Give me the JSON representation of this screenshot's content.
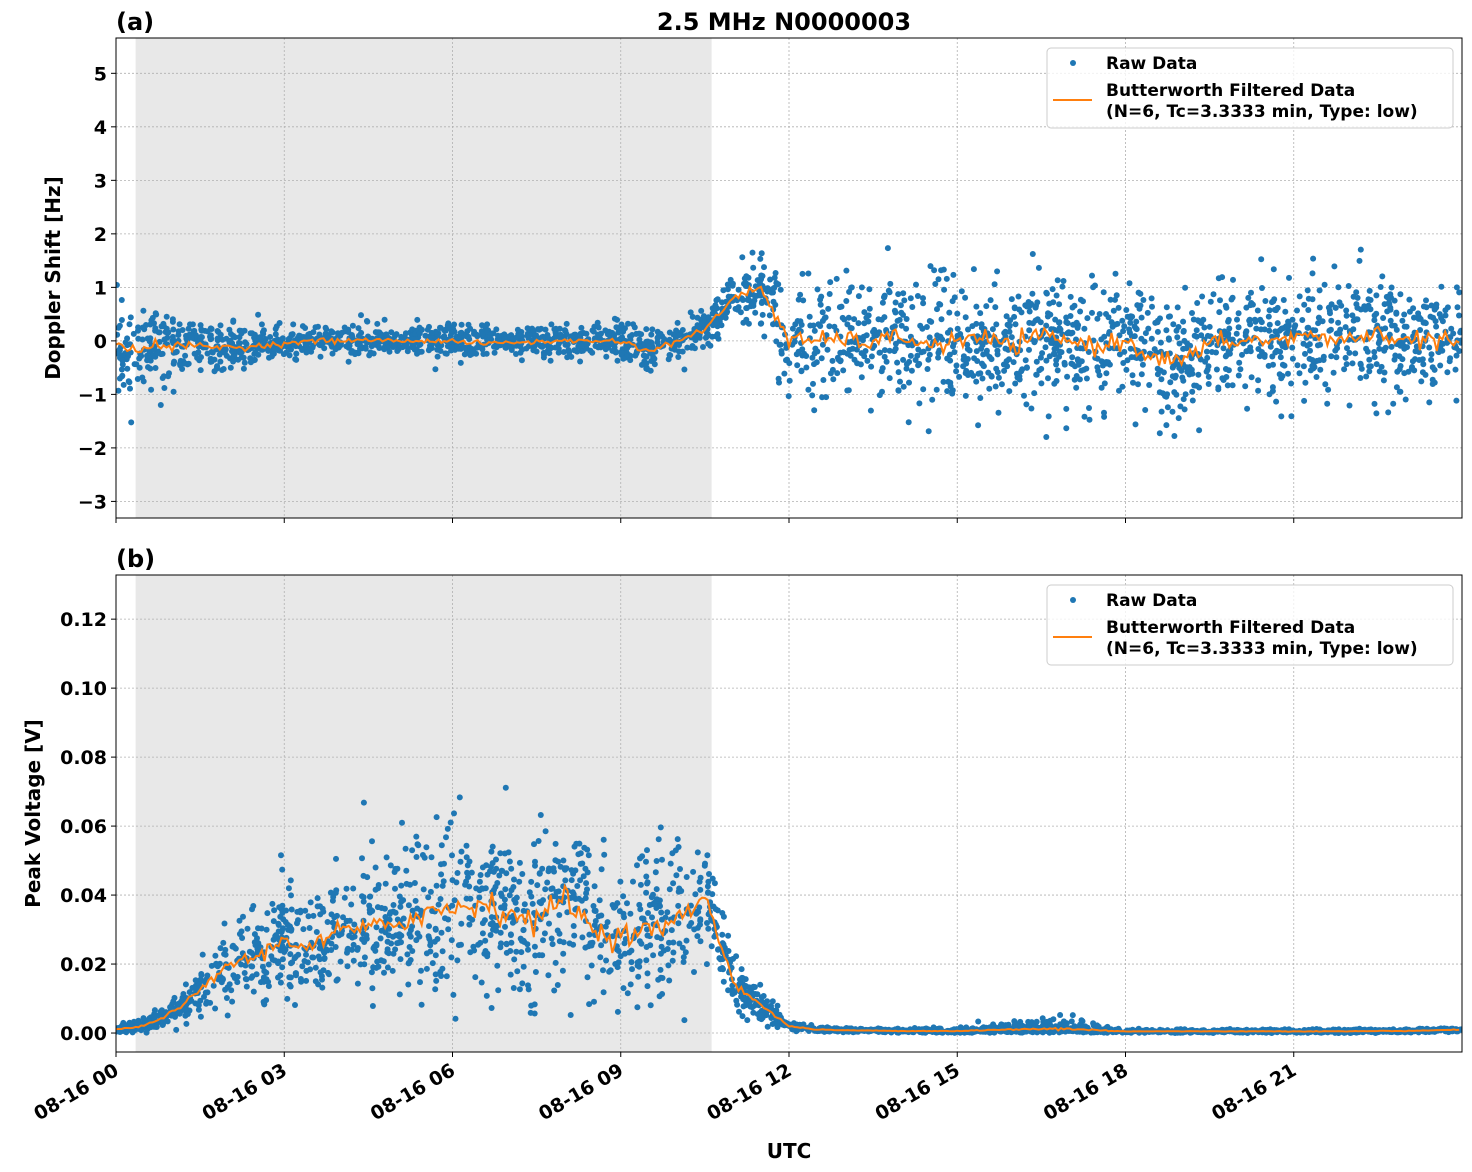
{
  "title": "2.5 MHz N0000003",
  "colors": {
    "raw": "#1f77b4",
    "filtered": "#ff7f0e",
    "shade": "#e8e8e8"
  },
  "chart_data": [
    {
      "type": "scatter",
      "panel_label": "(a)",
      "ylabel": "Doppler Shift [Hz]",
      "xlabel": "",
      "xlim_hours": [
        0,
        24
      ],
      "ylim": [
        -3.31,
        5.66
      ],
      "yticks": [
        "−3",
        "−2",
        "−1",
        "0",
        "1",
        "2",
        "3",
        "4",
        "5"
      ],
      "ytick_values": [
        -3,
        -2,
        -1,
        0,
        1,
        2,
        3,
        4,
        5
      ],
      "grid": true,
      "legend": {
        "placement": "top-right",
        "raw": "Raw Data",
        "filtered_line1": "Butterworth Filtered Data",
        "filtered_line2": "(N=6, Tc=3.3333 min, Type: low)"
      },
      "shaded_interval_hours": [
        0.35,
        10.62
      ],
      "series": [
        {
          "name": "Butterworth Filtered Data",
          "kind": "line",
          "x_hours_step": 0.5,
          "values": [
            -0.15,
            -0.1,
            -0.1,
            -0.1,
            -0.12,
            -0.1,
            -0.05,
            0,
            0,
            0.02,
            0,
            0,
            0,
            -0.05,
            -0.03,
            -0.02,
            0,
            0,
            0,
            -0.2,
            0,
            0.2,
            0.8,
            1.0,
            0,
            0,
            0.05,
            -0.05,
            0.1,
            -0.1,
            0,
            0.05,
            -0.1,
            0.1,
            0,
            -0.1,
            0,
            -0.3,
            -0.4,
            -0.05,
            0,
            0,
            0.05,
            0.1,
            0,
            0.15,
            0,
            0.05,
            -0.1
          ]
        },
        {
          "name": "Raw Data",
          "kind": "scatter",
          "spread_x_hours_step": 1,
          "spread": [
            0.8,
            0.55,
            0.4,
            0.3,
            0.28,
            0.25,
            0.3,
            0.25,
            0.28,
            0.32,
            0.35,
            0.4,
            0.9,
            0.95,
            1.0,
            1.0,
            1.0,
            1.05,
            1.1,
            1.05,
            1.0,
            1.0,
            1.05,
            1.0,
            0.9
          ]
        }
      ]
    },
    {
      "type": "scatter",
      "panel_label": "(b)",
      "ylabel": "Peak Voltage [V]",
      "xlabel": "UTC",
      "xlim_hours": [
        0,
        24
      ],
      "ylim": [
        -0.0055,
        0.1328
      ],
      "yticks": [
        "0.00",
        "0.02",
        "0.04",
        "0.06",
        "0.08",
        "0.10",
        "0.12"
      ],
      "ytick_values": [
        0,
        0.02,
        0.04,
        0.06,
        0.08,
        0.1,
        0.12
      ],
      "xticks": [
        "08-16 00",
        "08-16 03",
        "08-16 06",
        "08-16 09",
        "08-16 12",
        "08-16 15",
        "08-16 18",
        "08-16 21"
      ],
      "xtick_hours": [
        0,
        3,
        6,
        9,
        12,
        15,
        18,
        21
      ],
      "grid": true,
      "legend": {
        "placement": "top-right",
        "raw": "Raw Data",
        "filtered_line1": "Butterworth Filtered Data",
        "filtered_line2": "(N=6, Tc=3.3333 min, Type: low)"
      },
      "shaded_interval_hours": [
        0.35,
        10.62
      ],
      "series": [
        {
          "name": "Butterworth Filtered Data",
          "kind": "line",
          "x_hours_step": 0.5,
          "values": [
            0.001,
            0.002,
            0.006,
            0.012,
            0.02,
            0.022,
            0.027,
            0.025,
            0.03,
            0.03,
            0.032,
            0.035,
            0.036,
            0.038,
            0.035,
            0.032,
            0.04,
            0.03,
            0.028,
            0.03,
            0.032,
            0.04,
            0.015,
            0.008,
            0.002,
            0.001,
            0.0008,
            0.0007,
            0.0006,
            0.0006,
            0.0006,
            0.0008,
            0.001,
            0.0012,
            0.0012,
            0.0008,
            0.0005,
            0.0005,
            0.0005,
            0.0005,
            0.0005,
            0.0005,
            0.0005,
            0.0005,
            0.0005,
            0.0006,
            0.0006,
            0.0008,
            0.001
          ]
        },
        {
          "name": "Raw Data",
          "kind": "scatter",
          "spread_x_hours_step": 1,
          "spread": [
            0.001,
            0.003,
            0.011,
            0.014,
            0.017,
            0.021,
            0.024,
            0.024,
            0.022,
            0.02,
            0.02,
            0.008,
            0.001,
            0.0005,
            0.0005,
            0.0008,
            0.002,
            0.003,
            0.0005,
            0.0005,
            0.0005,
            0.0005,
            0.0005,
            0.0005,
            0.0005
          ]
        }
      ]
    }
  ]
}
